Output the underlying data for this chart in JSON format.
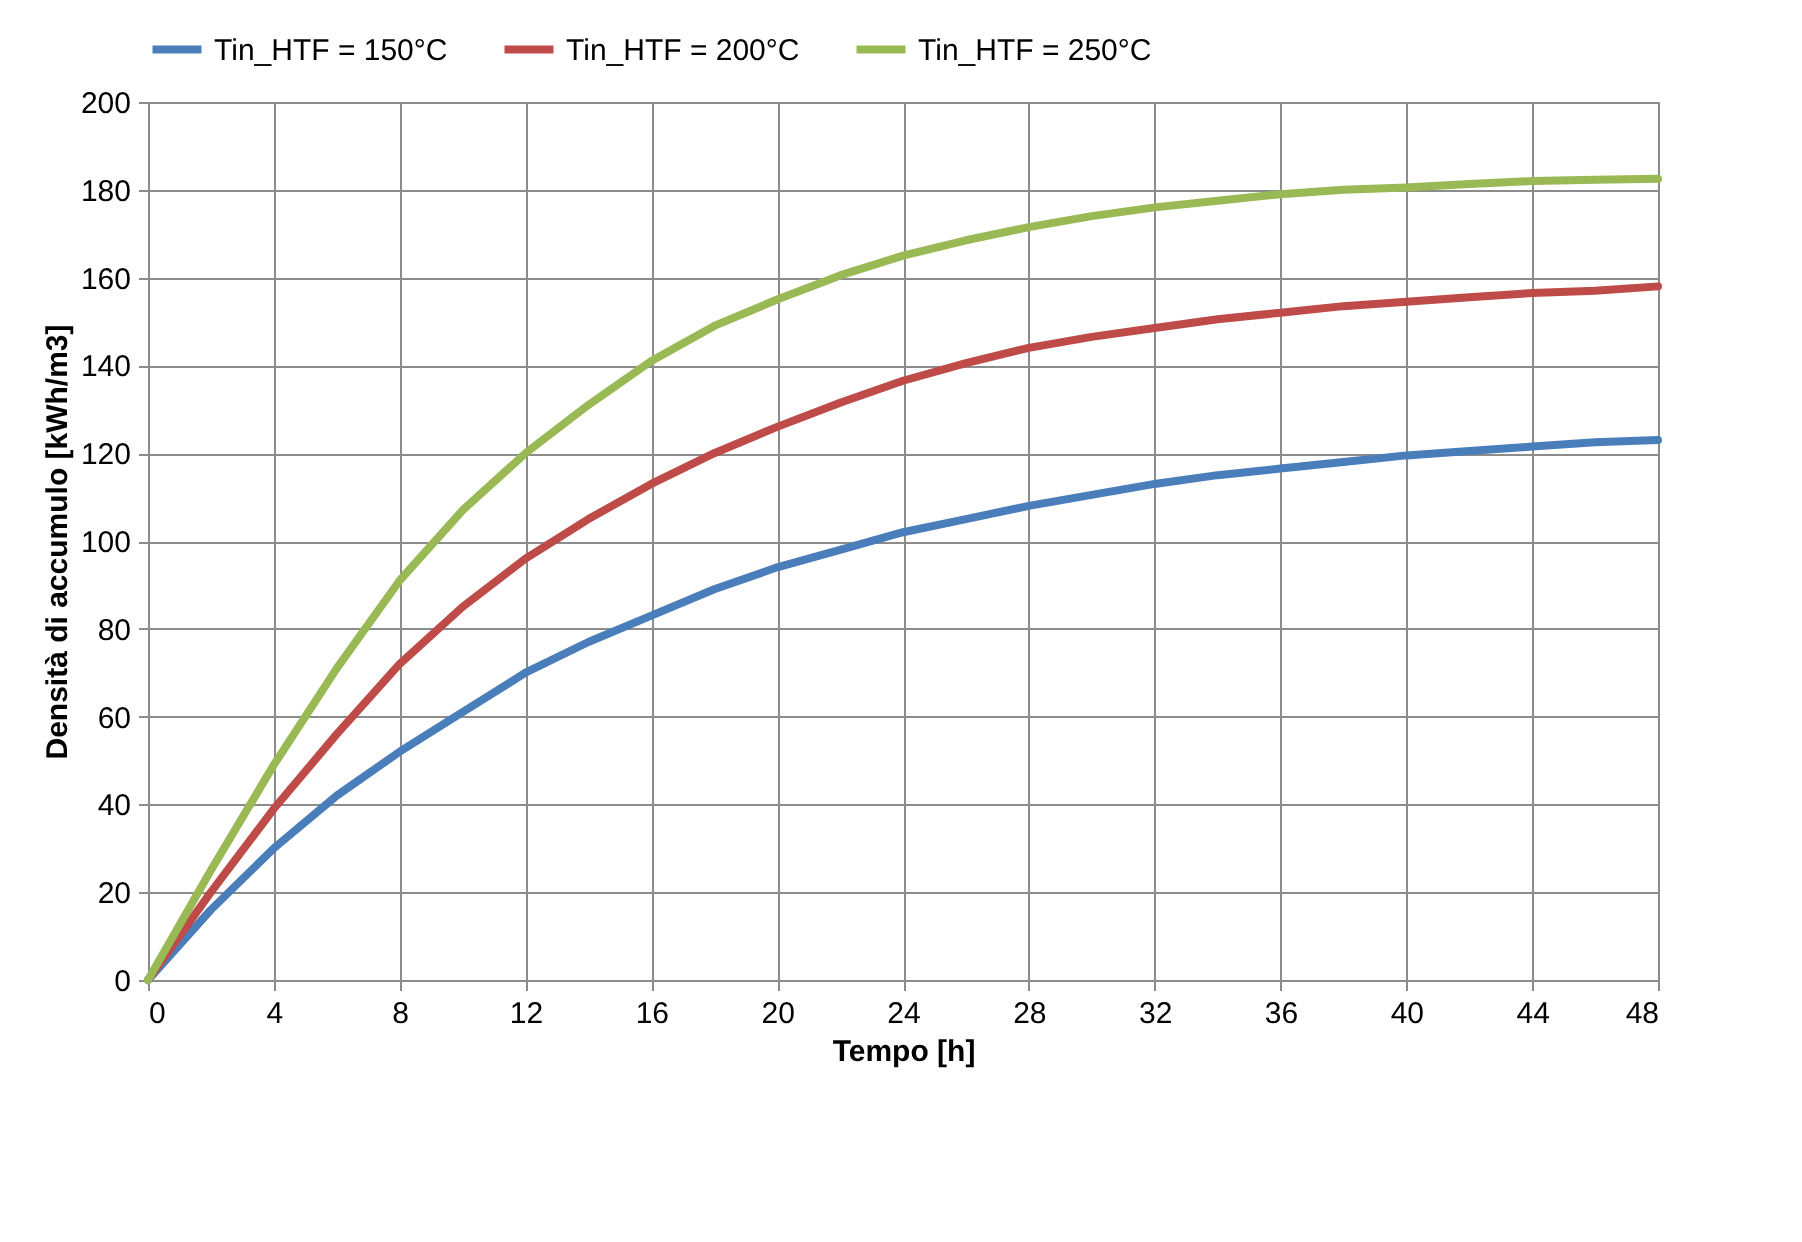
{
  "chart_data": {
    "type": "line",
    "xlabel": "Tempo  [h]",
    "ylabel": "Densità di accumulo  [kWh/m3]",
    "x": [
      0,
      2,
      4,
      6,
      8,
      10,
      12,
      14,
      16,
      18,
      20,
      22,
      24,
      26,
      28,
      30,
      32,
      34,
      36,
      38,
      40,
      42,
      44,
      46,
      48
    ],
    "series": [
      {
        "name": "Tin_HTF = 150°C",
        "color": "#4a7ebb",
        "values": [
          0,
          16,
          30,
          42,
          52,
          61,
          70,
          77,
          83,
          89,
          94,
          98,
          102,
          105,
          108,
          110.5,
          113,
          115,
          116.5,
          118,
          119.5,
          120.5,
          121.5,
          122.5,
          123
        ]
      },
      {
        "name": "Tin_HTF = 200°C",
        "color": "#be4b48",
        "values": [
          0,
          20,
          39,
          56,
          72,
          85,
          96,
          105,
          113,
          120,
          126,
          131.5,
          136.5,
          140.5,
          144,
          146.5,
          148.5,
          150.5,
          152,
          153.5,
          154.5,
          155.5,
          156.5,
          157,
          158
        ]
      },
      {
        "name": "Tin_HTF = 250°C",
        "color": "#98b954",
        "values": [
          0,
          25,
          49,
          71,
          91,
          107,
          120,
          131,
          141,
          149,
          155,
          160.5,
          165,
          168.5,
          171.5,
          174,
          176,
          177.5,
          179,
          180,
          180.5,
          181.3,
          182,
          182.3,
          182.5
        ]
      }
    ],
    "xlim": [
      0,
      48
    ],
    "xticks": [
      0,
      4,
      8,
      12,
      16,
      20,
      24,
      28,
      32,
      36,
      40,
      44,
      48
    ],
    "ylim": [
      0,
      200
    ],
    "yticks": [
      0,
      20,
      40,
      60,
      80,
      100,
      120,
      140,
      160,
      180,
      200
    ],
    "grid": true,
    "legend": "top",
    "marker": "none",
    "line_style": "solid"
  }
}
